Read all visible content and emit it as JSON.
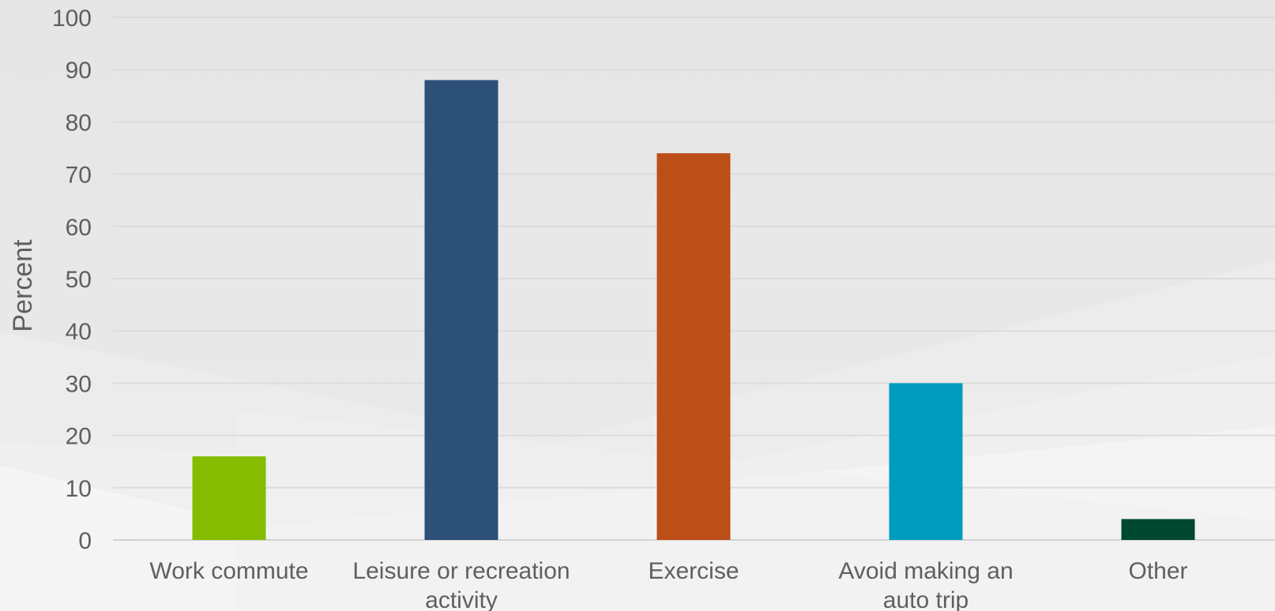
{
  "chart_data": {
    "type": "bar",
    "title": "",
    "xlabel": "",
    "ylabel": "Percent",
    "ylim": [
      0,
      100
    ],
    "yticks": [
      0,
      10,
      20,
      30,
      40,
      50,
      60,
      70,
      80,
      90,
      100
    ],
    "grid": true,
    "legend": "none",
    "categories": [
      [
        "Work commute"
      ],
      [
        "Leisure or recreation",
        "activity"
      ],
      [
        "Exercise"
      ],
      [
        "Avoid making an",
        "auto trip"
      ],
      [
        "Other"
      ]
    ],
    "values": [
      16,
      88,
      74,
      30,
      4
    ],
    "colors": [
      "#85bc00",
      "#2c5078",
      "#bc4e17",
      "#009cbd",
      "#00482f"
    ]
  }
}
